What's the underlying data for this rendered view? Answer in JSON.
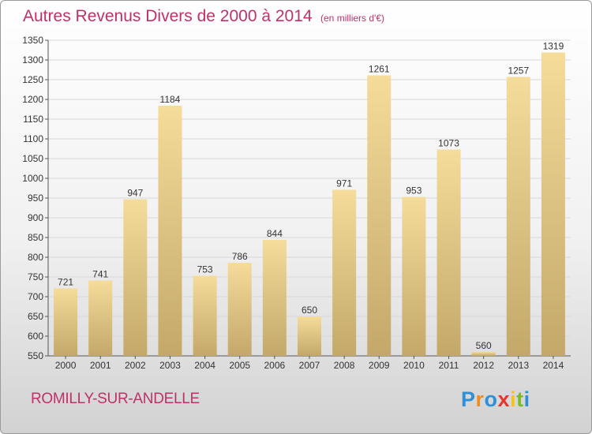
{
  "title": "Autres Revenus Divers de 2000 à 2014",
  "unit": "(en milliers d'€)",
  "commune": "ROMILLY-SUR-ANDELLE",
  "logo": {
    "letters": [
      "P",
      "r",
      "o",
      "x",
      "i",
      "t",
      "i"
    ],
    "colors": [
      "#2f8fd8",
      "#f28c1e",
      "#2f8fd8",
      "#e8352c",
      "#f2c21e",
      "#7bb82a",
      "#2f8fd8"
    ]
  },
  "colors": {
    "bar_top": "#f5dc9a",
    "bar_bottom": "#c3a86a",
    "grid": "#d8d8d8",
    "title": "#c0306a"
  },
  "chart_data": {
    "type": "bar",
    "categories": [
      "2000",
      "2001",
      "2002",
      "2003",
      "2004",
      "2005",
      "2006",
      "2007",
      "2008",
      "2009",
      "2010",
      "2011",
      "2012",
      "2013",
      "2014"
    ],
    "values": [
      721,
      741,
      947,
      1184,
      753,
      786,
      844,
      650,
      971,
      1261,
      953,
      1073,
      560,
      1257,
      1319
    ],
    "ylim": [
      550,
      1350
    ],
    "yticks": [
      550,
      600,
      650,
      700,
      750,
      800,
      850,
      900,
      950,
      1000,
      1050,
      1100,
      1150,
      1200,
      1250,
      1300,
      1350
    ],
    "grid": true,
    "title": "Autres Revenus Divers de 2000 à 2014",
    "xlabel": "",
    "ylabel": ""
  }
}
